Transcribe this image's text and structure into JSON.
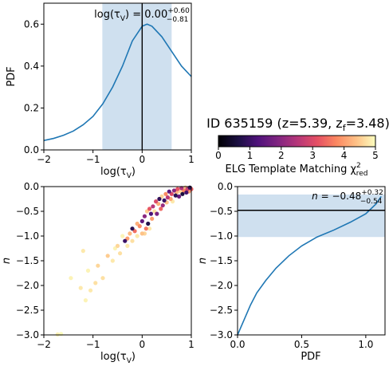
{
  "header": {
    "id_text": "ID 635159 (z=5.39, z",
    "zf_sub": "f",
    "zf_rest": "=3.48)"
  },
  "colorbar": {
    "colormap": "magma",
    "range": [
      0,
      5
    ],
    "ticks": [
      "0",
      "1",
      "2",
      "3",
      "4",
      "5"
    ],
    "label_main": "ELG Template Matching χ",
    "label_sup": "2",
    "label_sub": "red"
  },
  "chart_data": [
    {
      "panel": "top-left",
      "type": "line",
      "xlabel_main": "log(τ",
      "xlabel_sub": "V",
      "xlabel_tail": ")",
      "ylabel": "PDF",
      "xlim": [
        -2,
        1
      ],
      "ylim": [
        0,
        0.7
      ],
      "xticks": [
        "−2",
        "−1",
        "0",
        "1"
      ],
      "yticks": [
        "0.0",
        "0.2",
        "0.4",
        "0.6"
      ],
      "annotation": {
        "text": "log(τ",
        "sub": "V",
        "mid": ") = 0.00",
        "sup_plus": "+0.60",
        "sub_minus": "−0.81"
      },
      "median": 0.0,
      "band": [
        -0.81,
        0.6
      ],
      "line_color": "#1f77b4",
      "band_color": "#cfe0ef",
      "x": [
        -2,
        -1.8,
        -1.6,
        -1.4,
        -1.2,
        -1.0,
        -0.8,
        -0.6,
        -0.4,
        -0.2,
        0.0,
        0.1,
        0.2,
        0.4,
        0.6,
        0.8,
        1.0
      ],
      "y": [
        0.045,
        0.055,
        0.07,
        0.09,
        0.12,
        0.16,
        0.22,
        0.3,
        0.4,
        0.52,
        0.59,
        0.6,
        0.59,
        0.54,
        0.47,
        0.4,
        0.35
      ]
    },
    {
      "panel": "bottom-left",
      "type": "scatter",
      "xlabel_main": "log(τ",
      "xlabel_sub": "V",
      "xlabel_tail": ")",
      "ylabel": "n",
      "xlim": [
        -2,
        1
      ],
      "ylim": [
        -3,
        0
      ],
      "xticks": [
        "−2",
        "−1",
        "0",
        "1"
      ],
      "yticks": [
        "0.0",
        "−0.5",
        "−1.0",
        "−1.5",
        "−2.0",
        "−2.5",
        "−3.0"
      ],
      "points": [
        [
          -1.65,
          -2.98,
          5.0
        ],
        [
          -1.72,
          -2.99,
          4.9
        ],
        [
          -1.45,
          -1.85,
          4.9
        ],
        [
          -1.25,
          -2.05,
          4.8
        ],
        [
          -1.15,
          -2.3,
          4.9
        ],
        [
          -1.05,
          -2.1,
          4.8
        ],
        [
          -0.95,
          -1.95,
          4.7
        ],
        [
          -1.1,
          -1.7,
          4.9
        ],
        [
          -1.2,
          -1.3,
          4.8
        ],
        [
          -0.9,
          -1.6,
          4.6
        ],
        [
          -0.8,
          -1.85,
          4.7
        ],
        [
          -0.7,
          -1.4,
          4.5
        ],
        [
          -0.6,
          -1.5,
          4.8
        ],
        [
          -0.5,
          -1.2,
          4.6
        ],
        [
          -0.45,
          -1.35,
          4.7
        ],
        [
          -0.35,
          -1.1,
          1.0
        ],
        [
          -0.3,
          -1.05,
          4.0
        ],
        [
          -0.25,
          -0.95,
          4.3
        ],
        [
          -0.2,
          -0.85,
          0.8
        ],
        [
          -0.15,
          -0.9,
          3.5
        ],
        [
          -0.1,
          -0.75,
          4.2
        ],
        [
          -0.05,
          -0.8,
          3.8
        ],
        [
          0.0,
          -0.7,
          1.5
        ],
        [
          0.0,
          -0.95,
          4.4
        ],
        [
          0.05,
          -0.6,
          2.0
        ],
        [
          0.08,
          -0.85,
          3.6
        ],
        [
          0.1,
          -0.5,
          4.5
        ],
        [
          0.12,
          -0.75,
          0.7
        ],
        [
          0.15,
          -0.45,
          3.2
        ],
        [
          0.18,
          -0.55,
          1.2
        ],
        [
          0.2,
          -0.65,
          4.0
        ],
        [
          0.22,
          -0.4,
          2.5
        ],
        [
          0.25,
          -0.5,
          4.7
        ],
        [
          0.28,
          -0.3,
          3.0
        ],
        [
          0.3,
          -0.55,
          1.8
        ],
        [
          0.33,
          -0.35,
          4.2
        ],
        [
          0.35,
          -0.25,
          0.9
        ],
        [
          0.38,
          -0.45,
          3.4
        ],
        [
          0.4,
          -0.2,
          4.6
        ],
        [
          0.42,
          -0.38,
          2.2
        ],
        [
          0.45,
          -0.28,
          1.0
        ],
        [
          0.48,
          -0.15,
          3.8
        ],
        [
          0.5,
          -0.32,
          4.4
        ],
        [
          0.52,
          -0.22,
          2.6
        ],
        [
          0.55,
          -0.1,
          1.4
        ],
        [
          0.58,
          -0.25,
          4.1
        ],
        [
          0.6,
          -0.15,
          3.0
        ],
        [
          0.62,
          -0.3,
          4.8
        ],
        [
          0.65,
          -0.08,
          2.0
        ],
        [
          0.68,
          -0.18,
          0.8
        ],
        [
          0.7,
          -0.12,
          4.3
        ],
        [
          0.72,
          -0.05,
          3.2
        ],
        [
          0.75,
          -0.2,
          1.6
        ],
        [
          0.78,
          -0.1,
          4.6
        ],
        [
          0.8,
          -0.03,
          2.4
        ],
        [
          0.82,
          -0.15,
          0.6
        ],
        [
          0.85,
          -0.08,
          3.7
        ],
        [
          0.88,
          -0.02,
          4.5
        ],
        [
          0.9,
          -0.12,
          1.1
        ],
        [
          0.92,
          -0.05,
          2.8
        ],
        [
          0.95,
          -0.1,
          4.0
        ],
        [
          0.97,
          -0.02,
          0.9
        ],
        [
          1.0,
          -0.05,
          3.3
        ],
        [
          -0.4,
          -1.0,
          4.9
        ],
        [
          -0.55,
          -1.25,
          4.9
        ],
        [
          -0.3,
          -1.2,
          4.8
        ],
        [
          -0.2,
          -1.1,
          4.7
        ],
        [
          -0.1,
          -1.0,
          4.8
        ],
        [
          0.05,
          -0.95,
          4.6
        ],
        [
          0.15,
          -0.85,
          4.8
        ]
      ]
    },
    {
      "panel": "bottom-right",
      "type": "line",
      "xlabel": "PDF",
      "ylabel": "n",
      "xlim": [
        0,
        1.15
      ],
      "ylim": [
        -3,
        0
      ],
      "xticks": [
        "0.0",
        "0.5",
        "1.0"
      ],
      "yticks": [
        "0.0",
        "−0.5",
        "−1.0",
        "−1.5",
        "−2.0",
        "−2.5",
        "−3.0"
      ],
      "annotation": {
        "text": "n",
        "mid": " = −0.48",
        "sup_plus": "+0.32",
        "sub_minus": "−0.54"
      },
      "median": -0.48,
      "band": [
        -1.02,
        -0.16
      ],
      "line_color": "#1f77b4",
      "band_color": "#cfe0ef",
      "x": [
        0.0,
        0.05,
        0.1,
        0.15,
        0.22,
        0.3,
        0.4,
        0.5,
        0.62,
        0.75,
        0.88,
        1.0,
        1.08,
        1.12
      ],
      "y": [
        -3.0,
        -2.7,
        -2.4,
        -2.15,
        -1.9,
        -1.65,
        -1.4,
        -1.2,
        -1.02,
        -0.88,
        -0.72,
        -0.55,
        -0.35,
        -0.2
      ]
    }
  ]
}
